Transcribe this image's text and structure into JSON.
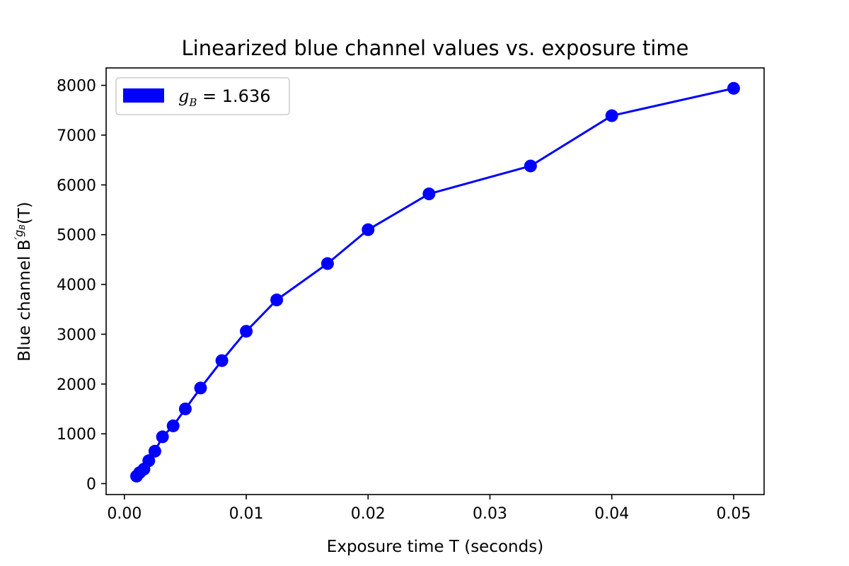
{
  "chart_data": {
    "type": "line",
    "title": "Linearized blue channel values vs. exposure time",
    "xlabel": "Exposure time T (seconds)",
    "ylabel": "Blue channel B",
    "ylabel_sup": "′g",
    "ylabel_sub": "B",
    "ylabel_tail": "(T)",
    "xlim": [
      -0.0015,
      0.0525
    ],
    "ylim": [
      -220,
      8350
    ],
    "xticks": [
      0.0,
      0.01,
      0.02,
      0.03,
      0.04,
      0.05
    ],
    "xtick_labels": [
      "0.00",
      "0.01",
      "0.02",
      "0.03",
      "0.04",
      "0.05"
    ],
    "yticks": [
      0,
      1000,
      2000,
      3000,
      4000,
      5000,
      6000,
      7000,
      8000
    ],
    "ytick_labels": [
      "0",
      "1000",
      "2000",
      "3000",
      "4000",
      "5000",
      "6000",
      "7000",
      "8000"
    ],
    "grid": false,
    "legend_position": "top-left",
    "series": [
      {
        "name_symbol": "g",
        "name_sub": "B",
        "name_rest": " = 1.636",
        "color": "#0000ff",
        "marker": "circle",
        "x": [
          0.001,
          0.00125,
          0.0016,
          0.002,
          0.0025,
          0.003125,
          0.004,
          0.005,
          0.00625,
          0.008,
          0.01,
          0.0125,
          0.01667,
          0.02,
          0.025,
          0.03333,
          0.04,
          0.05
        ],
        "y": [
          150,
          220,
          290,
          460,
          650,
          940,
          1160,
          1500,
          1920,
          2470,
          3060,
          3690,
          4420,
          5100,
          5820,
          6380,
          7390,
          7940
        ]
      }
    ]
  }
}
